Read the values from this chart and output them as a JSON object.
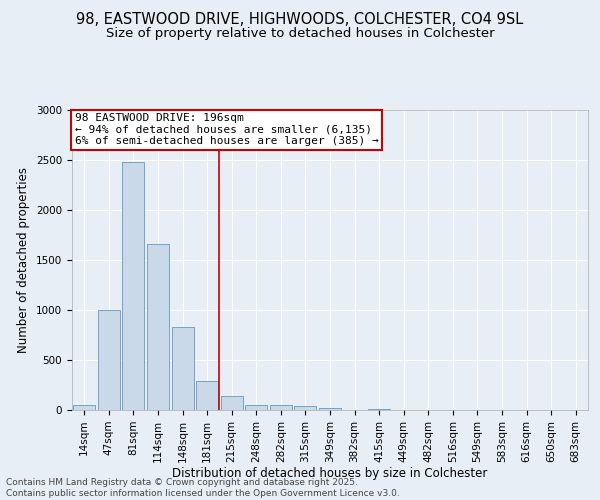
{
  "title_line1": "98, EASTWOOD DRIVE, HIGHWOODS, COLCHESTER, CO4 9SL",
  "title_line2": "Size of property relative to detached houses in Colchester",
  "xlabel": "Distribution of detached houses by size in Colchester",
  "ylabel": "Number of detached properties",
  "bar_labels": [
    "14sqm",
    "47sqm",
    "81sqm",
    "114sqm",
    "148sqm",
    "181sqm",
    "215sqm",
    "248sqm",
    "282sqm",
    "315sqm",
    "349sqm",
    "382sqm",
    "415sqm",
    "449sqm",
    "482sqm",
    "516sqm",
    "549sqm",
    "583sqm",
    "616sqm",
    "650sqm",
    "683sqm"
  ],
  "bar_values": [
    50,
    1000,
    2480,
    1660,
    830,
    290,
    140,
    55,
    50,
    40,
    20,
    0,
    10,
    0,
    0,
    0,
    0,
    0,
    0,
    0,
    0
  ],
  "bar_color": "#c9d9ea",
  "bar_edge_color": "#6699bb",
  "vline_x_index": 5.5,
  "vline_color": "#cc0000",
  "annotation_text": "98 EASTWOOD DRIVE: 196sqm\n← 94% of detached houses are smaller (6,135)\n6% of semi-detached houses are larger (385) →",
  "annotation_box_facecolor": "#ffffff",
  "annotation_box_edgecolor": "#cc0000",
  "ylim": [
    0,
    3000
  ],
  "yticks": [
    0,
    500,
    1000,
    1500,
    2000,
    2500,
    3000
  ],
  "bg_color": "#e8eef5",
  "grid_color": "#ffffff",
  "footer_text": "Contains HM Land Registry data © Crown copyright and database right 2025.\nContains public sector information licensed under the Open Government Licence v3.0.",
  "title1_fontsize": 10.5,
  "title2_fontsize": 9.5,
  "ylabel_fontsize": 8.5,
  "xlabel_fontsize": 8.5,
  "tick_fontsize": 7.5,
  "annot_fontsize": 8,
  "footer_fontsize": 6.5
}
